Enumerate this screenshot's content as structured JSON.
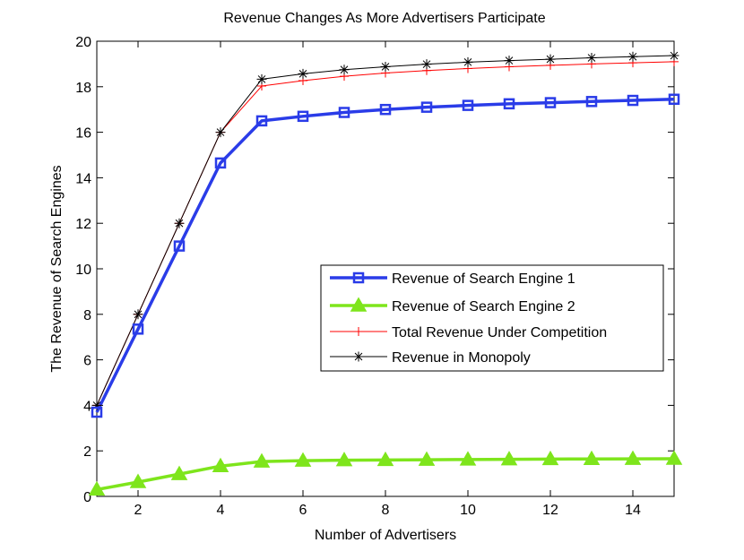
{
  "chart_data": {
    "type": "line",
    "title": "Revenue Changes As More Advertisers Participate",
    "xlabel": "Number of Advertisers",
    "ylabel": "The Revenue of Search Engines",
    "xlim": [
      1,
      15
    ],
    "ylim": [
      0,
      20
    ],
    "xticks": [
      2,
      4,
      6,
      8,
      10,
      12,
      14
    ],
    "yticks": [
      0,
      2,
      4,
      6,
      8,
      10,
      12,
      14,
      16,
      18,
      20
    ],
    "grid": false,
    "legend_position": "center-right",
    "x": [
      1,
      2,
      3,
      4,
      5,
      6,
      7,
      8,
      9,
      10,
      11,
      12,
      13,
      14,
      15
    ],
    "series": [
      {
        "name": "Revenue of Search Engine 1",
        "color": "#2a3ce8",
        "marker": "square",
        "values": [
          3.7,
          7.35,
          11.0,
          14.65,
          16.5,
          16.7,
          16.87,
          17.0,
          17.1,
          17.18,
          17.25,
          17.3,
          17.35,
          17.4,
          17.45
        ]
      },
      {
        "name": "Revenue of Search Engine 2",
        "color": "#7ee51c",
        "marker": "triangle",
        "values": [
          0.3,
          0.63,
          0.98,
          1.33,
          1.53,
          1.57,
          1.59,
          1.6,
          1.61,
          1.62,
          1.63,
          1.64,
          1.645,
          1.65,
          1.655
        ]
      },
      {
        "name": "Total Revenue Under Competition",
        "color": "#ff0000",
        "marker": "plus",
        "values": [
          4.0,
          8.0,
          12.0,
          16.0,
          18.03,
          18.27,
          18.46,
          18.6,
          18.71,
          18.8,
          18.88,
          18.94,
          19.0,
          19.05,
          19.1
        ]
      },
      {
        "name": "Revenue in Monopoly",
        "color": "#000000",
        "marker": "star",
        "values": [
          4.0,
          8.0,
          12.0,
          16.0,
          18.33,
          18.57,
          18.75,
          18.88,
          18.99,
          19.08,
          19.15,
          19.21,
          19.27,
          19.32,
          19.37
        ]
      }
    ]
  }
}
